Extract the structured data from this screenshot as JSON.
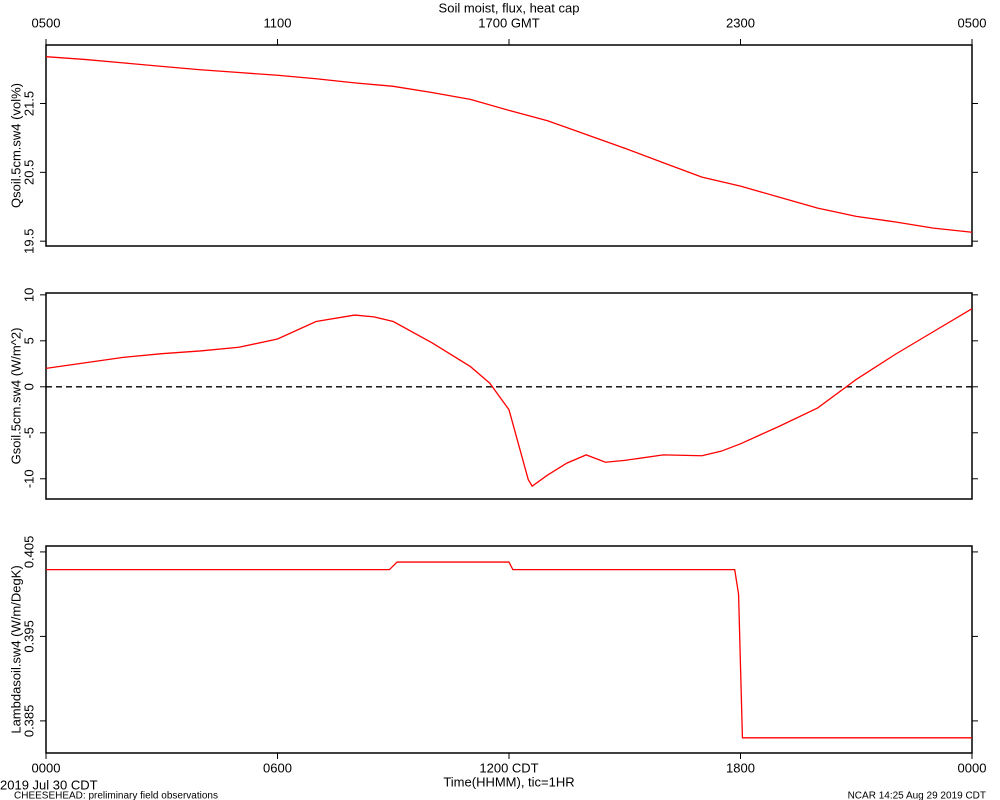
{
  "chart_data": [
    {
      "type": "line",
      "title": "Soil moist, flux, heat cap",
      "ylabel": "Qsoil.5cm.sw4 (vol%)",
      "xlim": [
        0,
        24
      ],
      "x2ticks": [
        {
          "value": 0,
          "label": "0500"
        },
        {
          "value": 6,
          "label": "1100"
        },
        {
          "value": 12,
          "label": "1700 GMT"
        },
        {
          "value": 18,
          "label": "2300"
        },
        {
          "value": 24,
          "label": "0500"
        }
      ],
      "ylim": [
        19.43,
        22.35
      ],
      "yticks": [
        19.5,
        20.5,
        21.5
      ],
      "x": [
        0,
        1,
        2,
        3,
        4,
        5,
        6,
        7,
        8,
        9,
        10,
        11,
        12,
        13,
        14,
        15,
        16,
        17,
        18,
        19,
        20,
        21,
        22,
        23,
        24
      ],
      "values": [
        22.18,
        22.14,
        22.09,
        22.04,
        21.99,
        21.95,
        21.91,
        21.86,
        21.8,
        21.75,
        21.66,
        21.56,
        21.4,
        21.25,
        21.05,
        20.85,
        20.64,
        20.43,
        20.3,
        20.14,
        19.98,
        19.86,
        19.78,
        19.69,
        19.63
      ],
      "color": "#ff0000"
    },
    {
      "type": "line",
      "ylabel": "Gsoil.5cm.sw4 (W/m^2)",
      "xlim": [
        0,
        24
      ],
      "ylim": [
        -12.2,
        10.2
      ],
      "yticks": [
        -10,
        -5,
        0,
        5,
        10
      ],
      "hline": 0,
      "x": [
        0,
        1,
        2,
        3,
        4,
        5,
        6,
        7,
        8,
        8.5,
        9,
        10,
        11,
        11.5,
        12,
        12.5,
        12.6,
        13,
        13.5,
        14,
        14.5,
        15,
        16,
        17,
        17.5,
        18,
        19,
        20,
        21,
        22,
        23,
        24
      ],
      "values": [
        2.0,
        2.6,
        3.2,
        3.6,
        3.9,
        4.3,
        5.2,
        7.1,
        7.8,
        7.6,
        7.1,
        4.8,
        2.2,
        0.4,
        -2.5,
        -10.1,
        -10.8,
        -9.6,
        -8.3,
        -7.4,
        -8.2,
        -8.0,
        -7.4,
        -7.5,
        -7.0,
        -6.2,
        -4.3,
        -2.3,
        0.8,
        3.5,
        6.0,
        8.5
      ],
      "color": "#ff0000"
    },
    {
      "type": "line",
      "ylabel": "Lambdasoil.sw4 (W/m/DegK)",
      "xlabel": "Time(HHMM), tic=1HR",
      "xlim": [
        0,
        24
      ],
      "xticks": [
        {
          "value": 0,
          "label": "0000"
        },
        {
          "value": 6,
          "label": "0600"
        },
        {
          "value": 12,
          "label": "1200 CDT"
        },
        {
          "value": 18,
          "label": "1800"
        },
        {
          "value": 24,
          "label": "0000"
        }
      ],
      "ylim": [
        0.3812,
        0.4057
      ],
      "yticks": [
        0.385,
        0.395,
        0.405
      ],
      "x": [
        0,
        8.9,
        9.1,
        12.0,
        12.1,
        17.85,
        17.95,
        18.05,
        24
      ],
      "values": [
        0.4029,
        0.4029,
        0.4038,
        0.4038,
        0.4029,
        0.4029,
        0.4,
        0.383,
        0.383
      ],
      "color": "#ff0000"
    }
  ],
  "footer": {
    "date": "2019 Jul 30 CDT",
    "project": "CHEESEHEAD: preliminary field observations",
    "stamp": "NCAR 14:25 Aug 29 2019 CDT"
  }
}
